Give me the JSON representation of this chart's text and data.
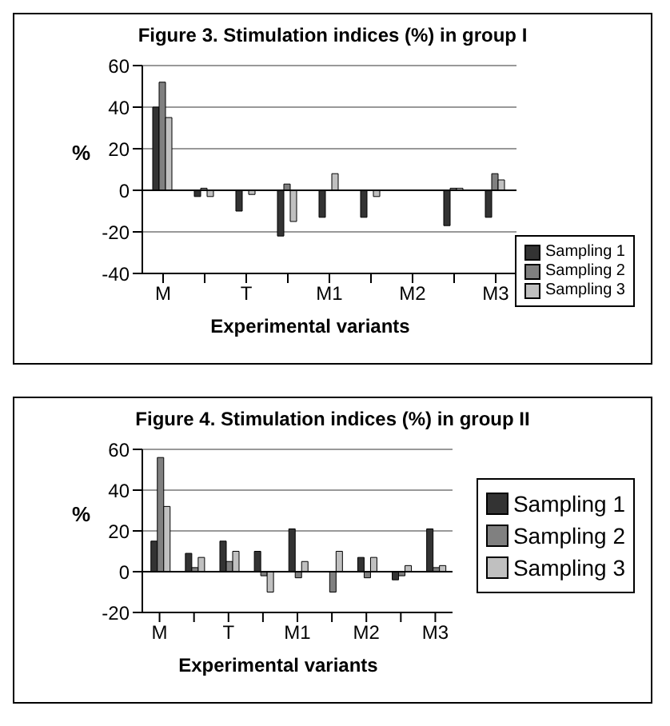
{
  "chart_data": [
    {
      "type": "bar",
      "title": "Figure 3. Stimulation indices (%) in group I",
      "xlabel": "Experimental variants",
      "ylabel": "%",
      "categories": [
        "M",
        null,
        "T",
        null,
        "M1",
        null,
        "M2",
        null,
        "M3"
      ],
      "series": [
        {
          "name": "Sampling 1",
          "color": "#333333",
          "values": [
            40,
            -3,
            -10,
            -22,
            -13,
            -13,
            0,
            -17,
            -13
          ]
        },
        {
          "name": "Sampling 2",
          "color": "#808080",
          "values": [
            52,
            1,
            0,
            3,
            0,
            0,
            0,
            1,
            8
          ]
        },
        {
          "name": "Sampling 3",
          "color": "#c0c0c0",
          "values": [
            35,
            -3,
            -2,
            -15,
            8,
            -3,
            0,
            1,
            5
          ]
        }
      ],
      "ylim": [
        -40,
        60
      ],
      "yticks": [
        -40,
        -20,
        0,
        20,
        40,
        60
      ],
      "grid": "y",
      "legend": "bottom right"
    },
    {
      "type": "bar",
      "title": "Figure 4. Stimulation indices (%) in group II",
      "xlabel": "Experimental variants",
      "ylabel": "%",
      "categories": [
        "M",
        null,
        "T",
        null,
        "M1",
        null,
        "M2",
        null,
        "M3"
      ],
      "series": [
        {
          "name": "Sampling 1",
          "color": "#333333",
          "values": [
            15,
            9,
            15,
            10,
            21,
            0,
            7,
            -4,
            21
          ]
        },
        {
          "name": "Sampling 2",
          "color": "#808080",
          "values": [
            56,
            2,
            5,
            -2,
            -3,
            -10,
            -3,
            -2,
            2
          ]
        },
        {
          "name": "Sampling 3",
          "color": "#c0c0c0",
          "values": [
            32,
            7,
            10,
            -10,
            5,
            10,
            7,
            3,
            3
          ]
        }
      ],
      "ylim": [
        -20,
        60
      ],
      "yticks": [
        -20,
        0,
        20,
        40,
        60
      ],
      "grid": "y",
      "legend": "right"
    }
  ]
}
